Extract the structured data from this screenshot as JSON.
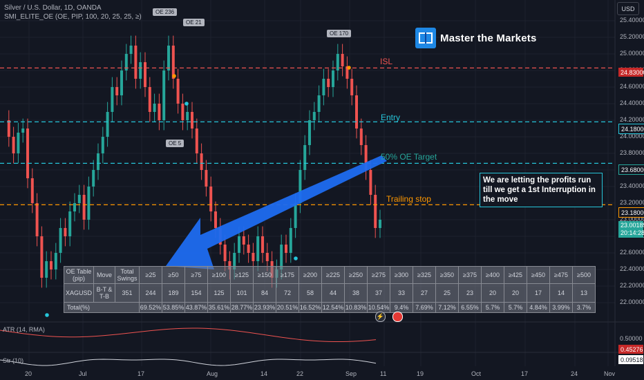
{
  "header": {
    "symbol_line": "Silver / U.S. Dollar, 1D, OANDA",
    "indicator_line": "SMI_ELITE_OE (OE, PIP, 100, 20, 25, 25, ≥)",
    "currency_button": "USD"
  },
  "logo": {
    "text": "Master the Markets",
    "icon": "book-logo-icon"
  },
  "colors": {
    "isl": "#ef5350",
    "entry": "#26c6da",
    "target": "#26a69a",
    "trailing": "#ff9800",
    "up": "#26a69a",
    "down": "#ef5350",
    "arrow": "#1e6cf0"
  },
  "annotations": {
    "isl": "ISL",
    "entry": "Entry",
    "target": "50% OE Target",
    "trailing": "Trailing stop",
    "note": "We are letting the profits run till we get a 1st Interruption in the move"
  },
  "swing_tags": [
    "OE 236",
    "OE 21",
    "OE 170",
    "OE 5"
  ],
  "price_axis": {
    "ticks": [
      "25.40000",
      "25.20000",
      "25.00000",
      "24.80000",
      "24.60000",
      "24.40000",
      "24.20000",
      "24.00000",
      "23.80000",
      "23.60000",
      "23.40000",
      "23.20000",
      "23.00000",
      "22.80000",
      "22.60000",
      "22.40000",
      "22.20000",
      "22.00000"
    ],
    "badges": {
      "isl": "24.83000",
      "entry": "24.18000",
      "target": "23.68000",
      "trailing": "23.18000",
      "last": "23.00185",
      "countdown": "20:14:28"
    }
  },
  "time_axis": [
    "20",
    "Jul",
    "17",
    "Aug",
    "14",
    "22",
    "Sep",
    "11",
    "19",
    "Oct",
    "17",
    "24",
    "Nov"
  ],
  "chart_data": {
    "type": "candlestick",
    "levels": [
      {
        "name": "ISL",
        "value": 24.83
      },
      {
        "name": "Entry",
        "value": 24.18
      },
      {
        "name": "50% OE Target",
        "value": 23.68
      },
      {
        "name": "Trailing stop",
        "value": 23.18
      }
    ],
    "last_price": 23.00185,
    "ylim": [
      21.9,
      25.45
    ]
  },
  "table": {
    "h_label": "OE Table (pip)",
    "h_move": "Move",
    "h_total": "Total Swings",
    "thresholds": [
      "≥25",
      "≥50",
      "≥75",
      "≥100",
      "≥125",
      "≥150",
      "≥175",
      "≥200",
      "≥225",
      "≥250",
      "≥275",
      "≥300",
      "≥325",
      "≥350",
      "≥375",
      "≥400",
      "≥425",
      "≥450",
      "≥475",
      "≥500"
    ],
    "row_symbol": "XAGUSD",
    "row_move": "B-T & T-B",
    "row_total": "351",
    "counts": [
      "244",
      "189",
      "154",
      "125",
      "101",
      "84",
      "72",
      "58",
      "44",
      "38",
      "37",
      "33",
      "27",
      "25",
      "23",
      "20",
      "20",
      "17",
      "14",
      "13"
    ],
    "total_label": "Total(%)",
    "percents": [
      "69.52%",
      "53.85%",
      "43.87%",
      "35.61%",
      "28.77%",
      "23.93%",
      "20.51%",
      "16.52%",
      "12.54%",
      "10.83%",
      "10.54%",
      "9.4%",
      "7.69%",
      "7.12%",
      "6.55%",
      "5.7%",
      "5.7%",
      "4.84%",
      "3.99%",
      "3.7%"
    ]
  },
  "atr": {
    "label": "ATR (14, RMA)",
    "tick": "0.50000",
    "value": "0.45276"
  },
  "str": {
    "label": "Str (10)",
    "value": "0.09518"
  }
}
